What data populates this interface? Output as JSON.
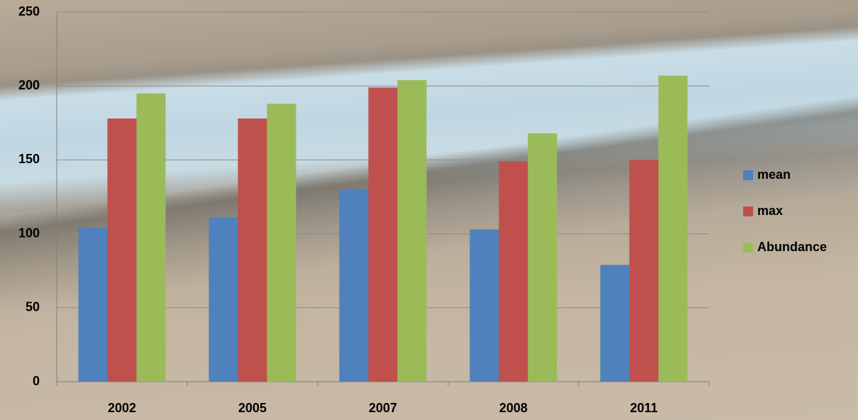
{
  "chart_data": {
    "type": "bar",
    "categories": [
      "2002",
      "2005",
      "2007",
      "2008",
      "2011"
    ],
    "series": [
      {
        "name": "mean",
        "color": "#4f81bd",
        "values": [
          104,
          111,
          130,
          103,
          79
        ]
      },
      {
        "name": "max",
        "color": "#c0504d",
        "values": [
          178,
          178,
          199,
          149,
          150
        ]
      },
      {
        "name": "Abundance",
        "color": "#9bbb59",
        "values": [
          195,
          188,
          204,
          168,
          207
        ]
      }
    ],
    "ylim": [
      0,
      250
    ],
    "yticks": [
      0,
      50,
      100,
      150,
      200,
      250
    ],
    "grid": true,
    "legend": "right"
  }
}
